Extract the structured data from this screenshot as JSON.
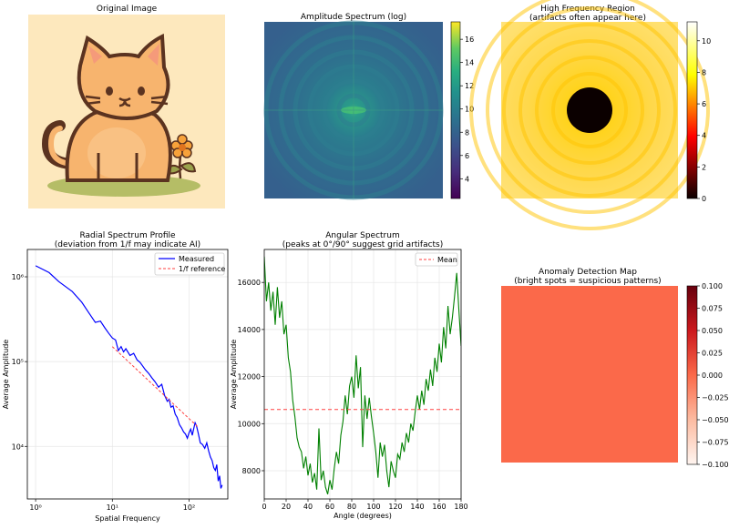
{
  "panels": {
    "original": {
      "title": "Original Image"
    },
    "amplitude": {
      "title": "Amplitude Spectrum (log)",
      "colorbar_ticks": [
        4,
        6,
        8,
        10,
        12,
        14,
        16
      ],
      "colorbar_range": [
        2.3,
        17.5
      ]
    },
    "highfreq": {
      "title_line1": "High Frequency Region",
      "title_line2": "(artifacts often appear here)",
      "colorbar_ticks": [
        0,
        2,
        4,
        6,
        8,
        10
      ],
      "colorbar_range": [
        0,
        11.2
      ]
    },
    "anomaly": {
      "title_line1": "Anomaly Detection Map",
      "title_line2": "(bright spots = suspicious patterns)",
      "colorbar_ticks": [
        "0.100",
        "0.075",
        "0.050",
        "0.025",
        "0.000",
        "−0.025",
        "−0.050",
        "−0.075",
        "−0.100"
      ],
      "fill_color": "#fb694a"
    }
  },
  "chart_data": [
    {
      "type": "line",
      "id": "radial",
      "title": "Radial Spectrum Profile",
      "subtitle": "(deviation from 1/f may indicate AI)",
      "xlabel": "Spatial Frequency",
      "ylabel": "Average Amplitude",
      "xscale": "log",
      "yscale": "log",
      "xlim": [
        0.78,
        320
      ],
      "ylim": [
        2400,
        2100000
      ],
      "xticks": [
        "10⁰",
        "10¹",
        "10²"
      ],
      "yticks": [
        "10⁴",
        "10⁵",
        "10⁶"
      ],
      "legend": [
        "Measured",
        "1/f reference"
      ],
      "legend_position": "top-right",
      "series": [
        {
          "name": "Measured",
          "color": "#0000ff",
          "x": [
            1,
            1.5,
            2,
            3,
            4,
            5,
            6,
            7,
            8,
            9,
            10,
            11,
            12,
            13,
            14,
            15,
            17,
            19,
            21,
            23,
            25,
            27,
            30,
            33,
            36,
            40,
            44,
            48,
            52,
            55,
            58,
            62,
            66,
            70,
            75,
            80,
            85,
            90,
            95,
            100,
            105,
            110,
            115,
            120,
            125,
            130,
            135,
            140,
            150,
            160,
            170,
            180,
            190,
            200,
            210,
            220,
            230,
            240,
            250,
            260,
            270
          ],
          "y": [
            1350000,
            1120000,
            880000,
            670000,
            500000,
            370000,
            290000,
            300000,
            250000,
            215000,
            190000,
            180000,
            135000,
            150000,
            130000,
            142000,
            118000,
            125000,
            105000,
            98000,
            88000,
            80000,
            72000,
            64000,
            58000,
            50000,
            54000,
            40000,
            34000,
            36000,
            29000,
            30000,
            24000,
            22000,
            18000,
            16500,
            14800,
            14000,
            12500,
            14500,
            16000,
            13500,
            16200,
            19000,
            17500,
            15000,
            13000,
            11000,
            10500,
            9500,
            11000,
            8800,
            7500,
            6800,
            5600,
            5200,
            6100,
            3900,
            4500,
            3200,
            3500
          ]
        },
        {
          "name": "1/f reference",
          "color": "#ff4040",
          "x": [
            10,
            130
          ],
          "y": [
            150000,
            17000
          ]
        }
      ]
    },
    {
      "type": "line",
      "id": "angular",
      "title": "Angular Spectrum",
      "subtitle": "(peaks at 0°/90° suggest grid artifacts)",
      "xlabel": "Angle (degrees)",
      "ylabel": "Average Amplitude",
      "xlim": [
        0,
        180
      ],
      "ylim": [
        6800,
        17400
      ],
      "xticks": [
        0,
        20,
        40,
        60,
        80,
        100,
        120,
        140,
        160,
        180
      ],
      "yticks": [
        8000,
        10000,
        12000,
        14000,
        16000
      ],
      "mean": 10600,
      "legend": [
        "Mean"
      ],
      "legend_position": "top-right",
      "series": [
        {
          "name": "Amplitude",
          "color": "#008000",
          "x": [
            0,
            2,
            4,
            6,
            8,
            10,
            12,
            14,
            16,
            18,
            20,
            22,
            24,
            26,
            28,
            30,
            32,
            34,
            36,
            38,
            40,
            42,
            44,
            46,
            48,
            50,
            52,
            54,
            56,
            58,
            60,
            62,
            64,
            66,
            68,
            70,
            72,
            74,
            76,
            78,
            80,
            82,
            84,
            86,
            88,
            90,
            92,
            94,
            96,
            98,
            100,
            102,
            104,
            106,
            108,
            110,
            112,
            114,
            116,
            118,
            120,
            122,
            124,
            126,
            128,
            130,
            132,
            134,
            136,
            138,
            140,
            142,
            144,
            146,
            148,
            150,
            152,
            154,
            156,
            158,
            160,
            162,
            164,
            166,
            168,
            170,
            172,
            174,
            176,
            178,
            180
          ],
          "y": [
            17100,
            15200,
            16000,
            14800,
            15600,
            14200,
            15800,
            14500,
            15200,
            13800,
            14200,
            12800,
            12200,
            11000,
            10300,
            9400,
            9000,
            8800,
            8100,
            8600,
            7800,
            8300,
            7500,
            7900,
            7200,
            9800,
            7600,
            8000,
            7300,
            7000,
            7600,
            7200,
            8100,
            8800,
            8300,
            9500,
            10100,
            11200,
            10400,
            11600,
            12000,
            11100,
            12900,
            11500,
            12400,
            9000,
            11200,
            10200,
            11100,
            10300,
            9600,
            8800,
            7700,
            9200,
            8600,
            9100,
            8000,
            7300,
            8400,
            8000,
            7700,
            8700,
            8500,
            9200,
            8800,
            9600,
            9200,
            10000,
            9700,
            10500,
            11200,
            10600,
            11400,
            10800,
            11900,
            11400,
            12300,
            11600,
            12800,
            12200,
            13400,
            12600,
            14100,
            13200,
            15000,
            13800,
            14500,
            15400,
            16400,
            14800,
            13300
          ]
        }
      ]
    }
  ]
}
